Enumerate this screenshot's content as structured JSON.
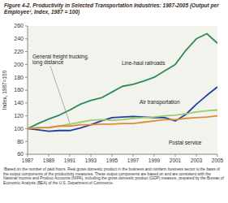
{
  "chart_data": {
    "type": "line",
    "title": "Figure 4-2. Productivity in Selected Transportation Industries: 1987-2005 (Output per Employee¹, Index, 1987 = 100)",
    "y_label": "Index, 1987=100",
    "footnote": "¹Based on the number of paid hours. Real gross domestic product in the business and nonfarm business sector is the basis of the output components of the productivity measures. These output components are based on and are consistent with the National Income and Product Accounts (NIPA), including the gross domestic product (GDP) measure, prepared by the Bureau of Economic Analysis (BEA) of the U.S. Department of Commerce.",
    "x": [
      1987,
      1988,
      1989,
      1990,
      1991,
      1992,
      1993,
      1994,
      1995,
      1996,
      1997,
      1998,
      1999,
      2000,
      2001,
      2002,
      2003,
      2004,
      2005
    ],
    "xlim": [
      1987,
      2005
    ],
    "xticks": [
      1987,
      1989,
      1991,
      1993,
      1995,
      1997,
      1999,
      2001,
      2003,
      2005
    ],
    "ylim": [
      60,
      260
    ],
    "yticks": [
      60,
      80,
      100,
      120,
      140,
      160,
      180,
      200,
      220,
      240,
      260
    ],
    "grid": false,
    "series": [
      {
        "name": "Line-haul railroads",
        "color": "#2f8a5a",
        "values": [
          100,
          108,
          115,
          121,
          129,
          138,
          144,
          148,
          157,
          166,
          169,
          174,
          180,
          190,
          200,
          222,
          240,
          248,
          233
        ]
      },
      {
        "name": "Air transportation",
        "color": "#2340a0",
        "values": [
          100,
          98,
          96,
          97,
          97,
          101,
          106,
          112,
          117,
          118,
          119,
          118,
          117,
          117,
          112,
          122,
          138,
          152,
          165
        ]
      },
      {
        "name": "General freight trucking, long distance",
        "color": "#9acd66",
        "values": [
          100,
          102,
          101,
          104,
          107,
          110,
          113,
          114,
          113,
          114,
          116,
          117,
          118,
          120,
          121,
          123,
          126,
          128,
          129
        ]
      },
      {
        "name": "Postal service",
        "color": "#e08a3c",
        "values": [
          100,
          101,
          102,
          104,
          104,
          106,
          106,
          107,
          107,
          108,
          108,
          110,
          112,
          114,
          114,
          116,
          117,
          118,
          120
        ]
      }
    ]
  }
}
